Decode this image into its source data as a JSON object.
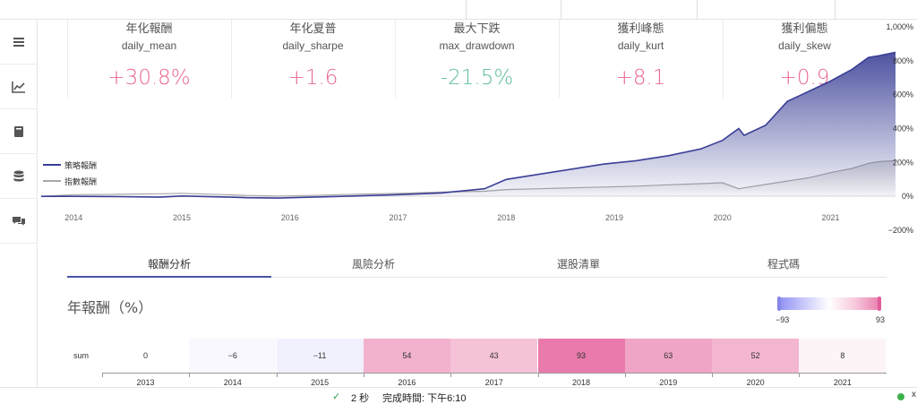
{
  "metrics": [
    {
      "title": "年化報酬",
      "key": "daily_mean",
      "value": "+30.8%",
      "color": "#e8698f"
    },
    {
      "title": "年化夏普",
      "key": "daily_sharpe",
      "value": "+1.6",
      "color": "#e8698f"
    },
    {
      "title": "最大下跌",
      "key": "max_drawdown",
      "value": "-21.5%",
      "color": "#5fbf98"
    },
    {
      "title": "獲利峰態",
      "key": "daily_kurt",
      "value": "+8.1",
      "color": "#e8698f"
    },
    {
      "title": "獲利偏態",
      "key": "daily_skew",
      "value": "+0.9",
      "color": "#e8698f"
    }
  ],
  "legend": {
    "strategy": "策略報酬",
    "index": "指數報酬",
    "strategy_color": "#3a3f96",
    "index_color": "#a8a8a8"
  },
  "chart_data": {
    "type": "area",
    "x_ticks": [
      "2014",
      "2015",
      "2016",
      "2017",
      "2018",
      "2019",
      "2020",
      "2021"
    ],
    "y_ticks": [
      "1,000%",
      "800%",
      "600%",
      "400%",
      "200%",
      "0%",
      "−200%"
    ],
    "ylim": [
      -200,
      1000
    ],
    "series": [
      {
        "name": "策略報酬",
        "x": [
          2013.7,
          2014.0,
          2014.4,
          2014.8,
          2015.0,
          2015.4,
          2015.6,
          2015.9,
          2016.2,
          2016.6,
          2017.0,
          2017.4,
          2017.8,
          2018.0,
          2018.3,
          2018.6,
          2018.9,
          2019.2,
          2019.5,
          2019.8,
          2020.0,
          2020.15,
          2020.2,
          2020.4,
          2020.6,
          2020.8,
          2021.0,
          2021.2,
          2021.35,
          2021.45,
          2021.6
        ],
        "values": [
          0,
          0,
          -2,
          -5,
          2,
          -4,
          -8,
          -10,
          -5,
          2,
          10,
          20,
          45,
          100,
          130,
          160,
          190,
          210,
          240,
          280,
          330,
          400,
          360,
          420,
          560,
          620,
          680,
          750,
          820,
          830,
          850
        ]
      },
      {
        "name": "指數報酬",
        "x": [
          2013.7,
          2014.0,
          2014.4,
          2014.8,
          2015.0,
          2015.4,
          2015.6,
          2015.9,
          2016.2,
          2016.6,
          2017.0,
          2017.4,
          2017.8,
          2018.0,
          2018.3,
          2018.6,
          2018.9,
          2019.2,
          2019.5,
          2019.8,
          2020.0,
          2020.15,
          2020.2,
          2020.4,
          2020.6,
          2020.8,
          2021.0,
          2021.2,
          2021.35,
          2021.45,
          2021.6
        ],
        "values": [
          0,
          10,
          12,
          15,
          18,
          10,
          5,
          2,
          5,
          12,
          18,
          25,
          30,
          40,
          45,
          50,
          55,
          60,
          68,
          75,
          80,
          45,
          50,
          70,
          90,
          110,
          140,
          165,
          195,
          205,
          210
        ]
      }
    ]
  },
  "tabs": [
    {
      "label": "報酬分析",
      "active": true
    },
    {
      "label": "風險分析",
      "active": false
    },
    {
      "label": "選股清單",
      "active": false
    },
    {
      "label": "程式碼",
      "active": false
    }
  ],
  "annual": {
    "title": "年報酬（%）",
    "scale_min": "−93",
    "scale_max": "93",
    "row_label": "sum",
    "years": [
      "2013",
      "2014",
      "2015",
      "2016",
      "2017",
      "2018",
      "2019",
      "2020",
      "2021"
    ],
    "values": [
      0,
      -6,
      -11,
      54,
      43,
      93,
      63,
      52,
      8
    ],
    "labels": [
      "0",
      "−6",
      "−11",
      "54",
      "43",
      "93",
      "63",
      "52",
      "8"
    ]
  },
  "status": {
    "check": "✓",
    "duration": "2 秒",
    "completed": "完成時間:  下午6:10",
    "close": "x"
  }
}
